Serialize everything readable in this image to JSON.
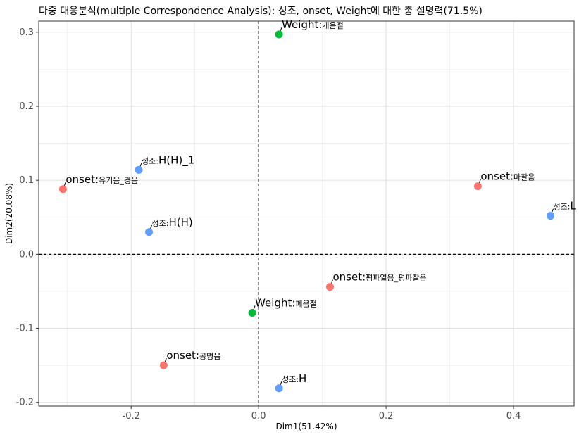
{
  "chart_data": {
    "type": "scatter",
    "title": "다중 대응분석(multiple Correspondence Analysis): 성조, onset, Weight에 대한 총 설명력(71.5%)",
    "xlabel": "Dim1(51.42%)",
    "ylabel": "Dim2(20.08%)",
    "xlim": [
      -0.345,
      0.495
    ],
    "ylim": [
      -0.205,
      0.315
    ],
    "x_ticks": [
      -0.2,
      0.0,
      0.2,
      0.4
    ],
    "y_ticks": [
      -0.2,
      -0.1,
      0.0,
      0.1,
      0.2,
      0.3
    ],
    "x_tick_labels": [
      "-0.2",
      "0.0",
      "0.2",
      "0.4"
    ],
    "y_tick_labels": [
      "-0.2",
      "-0.1",
      "0.0",
      "0.1",
      "0.2",
      "0.3"
    ],
    "grid": true,
    "reference_lines": {
      "x": 0,
      "y": 0,
      "style": "dashed"
    },
    "series": [
      {
        "color": "#f8766d",
        "points": [
          {
            "x": -0.307,
            "y": 0.088,
            "label_a": "onset",
            "label_b": "유기음_경음"
          },
          {
            "x": 0.344,
            "y": 0.092,
            "label_a": "onset",
            "label_b": "마찰음"
          },
          {
            "x": 0.112,
            "y": -0.044,
            "label_a": "onset",
            "label_b": "평파열음_평파찰음"
          },
          {
            "x": -0.149,
            "y": -0.15,
            "label_a": "onset",
            "label_b": "공명음"
          }
        ]
      },
      {
        "color": "#00ba38",
        "points": [
          {
            "x": 0.032,
            "y": 0.297,
            "label_a": "Weight",
            "label_b": "개음절"
          },
          {
            "x": -0.01,
            "y": -0.079,
            "label_a": "Weight",
            "label_b": "폐음절"
          }
        ]
      },
      {
        "color": "#619cff",
        "points": [
          {
            "x": -0.188,
            "y": 0.114,
            "label_b": "성조",
            "label_a": "H(H)_1"
          },
          {
            "x": -0.172,
            "y": 0.03,
            "label_b": "성조",
            "label_a": "H(H)"
          },
          {
            "x": 0.458,
            "y": 0.052,
            "label_b": "성조",
            "label_a": "L"
          },
          {
            "x": 0.032,
            "y": -0.181,
            "label_b": "성조",
            "label_a": "H"
          }
        ]
      }
    ]
  }
}
